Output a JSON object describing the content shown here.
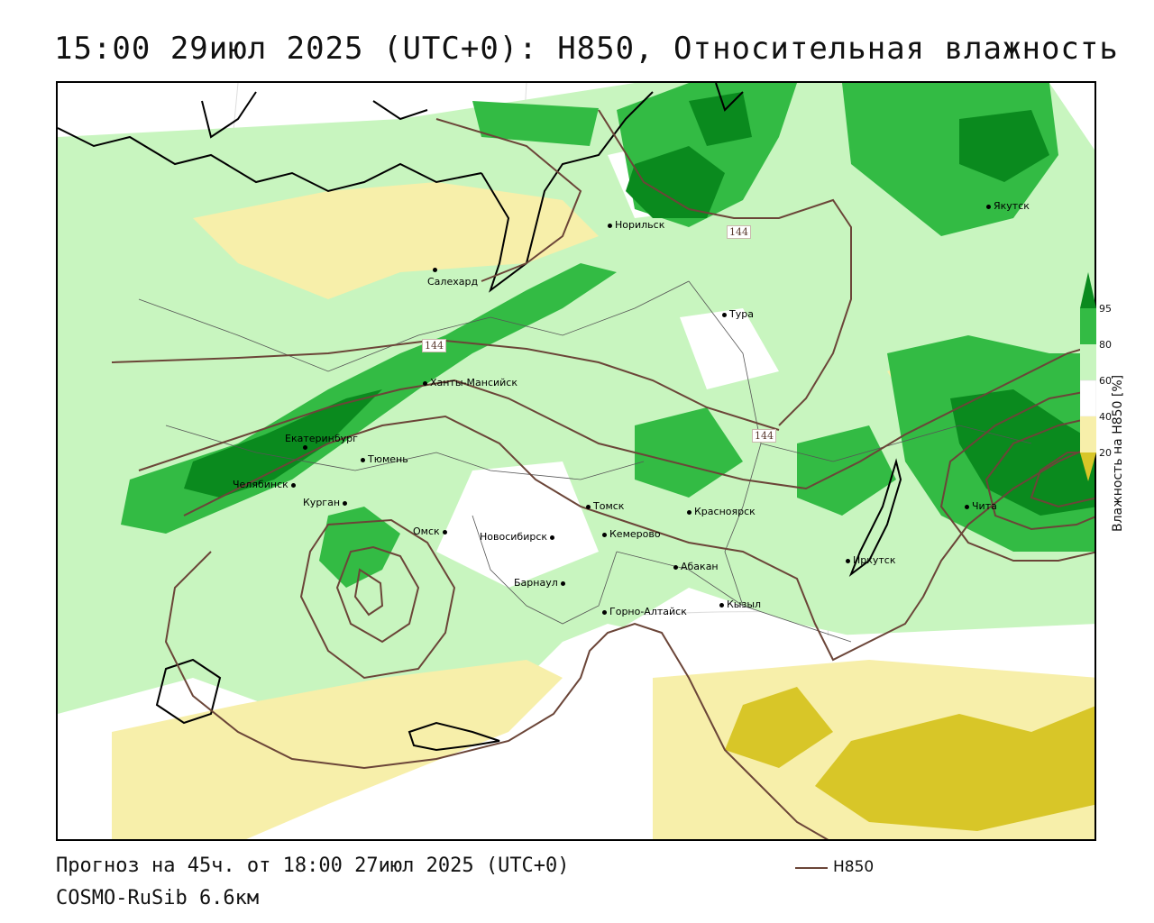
{
  "title": "15:00 29июл 2025 (UTC+0): H850, Относительная влажность",
  "footer": {
    "forecast": "Прогноз на 45ч. от 18:00 27июл 2025 (UTC+0)",
    "model": "COSMO-RuSib 6.6км",
    "legend_line_label": "H850"
  },
  "colorbar": {
    "label": "Влажность на H850 [%]",
    "ticks": [
      "95",
      "80",
      "60",
      "40",
      "20"
    ],
    "colors": {
      "above_95": "#0a8a1e",
      "80_95": "#33bb44",
      "60_80": "#c8f5bf",
      "40_60": "#ffffff",
      "20_40": "#f7efaa",
      "below_20": "#d8c628"
    }
  },
  "contour": {
    "label": "144",
    "color": "#6b4538"
  },
  "cities": [
    {
      "name": "Якутск"
    },
    {
      "name": "Норильск"
    },
    {
      "name": "Салехард"
    },
    {
      "name": "Тура"
    },
    {
      "name": "Ханты-Мансийск"
    },
    {
      "name": "Екатеринбург"
    },
    {
      "name": "Тюмень"
    },
    {
      "name": "Челябинск"
    },
    {
      "name": "Курган"
    },
    {
      "name": "Омск"
    },
    {
      "name": "Новосибирск"
    },
    {
      "name": "Томск"
    },
    {
      "name": "Кемерово"
    },
    {
      "name": "Красноярск"
    },
    {
      "name": "Абакан"
    },
    {
      "name": "Барнаул"
    },
    {
      "name": "Горно-Алтайск"
    },
    {
      "name": "Кызыл"
    },
    {
      "name": "Иркутск"
    },
    {
      "name": "Чита"
    }
  ]
}
